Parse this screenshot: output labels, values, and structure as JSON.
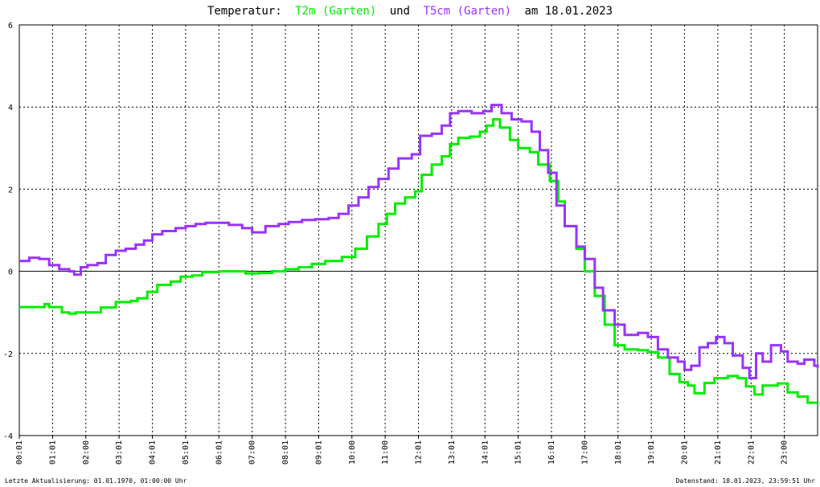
{
  "chart_data": {
    "type": "line",
    "title": {
      "prefix": "Temperatur:",
      "series1_label": "T2m (Garten)",
      "connector": "und",
      "series2_label": "T5cm (Garten)",
      "date_text": "am 18.01.2023"
    },
    "ylim": [
      -4,
      6
    ],
    "y_ticks": [
      -4,
      -2,
      0,
      2,
      4,
      6
    ],
    "x_range_hours": [
      0,
      24
    ],
    "x_tick_labels": [
      "00:01",
      "01:01",
      "02:00",
      "03:01",
      "04:01",
      "05:01",
      "06:01",
      "07:00",
      "08:01",
      "09:01",
      "10:00",
      "11:00",
      "12:01",
      "13:01",
      "14:01",
      "15:01",
      "16:01",
      "17:00",
      "18:01",
      "19:01",
      "20:01",
      "21:01",
      "22:01",
      "23:00"
    ],
    "grid": true,
    "series": [
      {
        "key": "t2m",
        "color": "#00ee00",
        "points": [
          [
            0.0,
            -0.87
          ],
          [
            0.66,
            -0.87
          ],
          [
            0.76,
            -0.8
          ],
          [
            0.9,
            -0.87
          ],
          [
            1.28,
            -1.0
          ],
          [
            1.5,
            -1.03
          ],
          [
            1.7,
            -1.0
          ],
          [
            2.45,
            -0.88
          ],
          [
            2.9,
            -0.75
          ],
          [
            3.35,
            -0.72
          ],
          [
            3.55,
            -0.66
          ],
          [
            3.85,
            -0.5
          ],
          [
            4.15,
            -0.33
          ],
          [
            4.55,
            -0.25
          ],
          [
            4.85,
            -0.13
          ],
          [
            5.2,
            -0.1
          ],
          [
            5.5,
            -0.02
          ],
          [
            6.0,
            0.0
          ],
          [
            6.5,
            0.0
          ],
          [
            6.8,
            -0.05
          ],
          [
            7.2,
            -0.04
          ],
          [
            7.6,
            0.0
          ],
          [
            8.0,
            0.05
          ],
          [
            8.4,
            0.1
          ],
          [
            8.8,
            0.18
          ],
          [
            9.2,
            0.25
          ],
          [
            9.7,
            0.35
          ],
          [
            10.1,
            0.55
          ],
          [
            10.45,
            0.85
          ],
          [
            10.8,
            1.15
          ],
          [
            11.05,
            1.4
          ],
          [
            11.3,
            1.65
          ],
          [
            11.6,
            1.8
          ],
          [
            11.9,
            1.95
          ],
          [
            12.1,
            2.35
          ],
          [
            12.4,
            2.6
          ],
          [
            12.7,
            2.8
          ],
          [
            12.95,
            3.1
          ],
          [
            13.2,
            3.25
          ],
          [
            13.55,
            3.28
          ],
          [
            13.85,
            3.4
          ],
          [
            14.05,
            3.55
          ],
          [
            14.25,
            3.7
          ],
          [
            14.45,
            3.5
          ],
          [
            14.75,
            3.2
          ],
          [
            15.0,
            3.0
          ],
          [
            15.35,
            2.9
          ],
          [
            15.6,
            2.6
          ],
          [
            15.95,
            2.2
          ],
          [
            16.2,
            1.7
          ],
          [
            16.4,
            1.1
          ],
          [
            16.75,
            0.55
          ],
          [
            17.0,
            0.0
          ],
          [
            17.3,
            -0.6
          ],
          [
            17.6,
            -1.3
          ],
          [
            17.9,
            -1.8
          ],
          [
            18.2,
            -1.9
          ],
          [
            18.6,
            -1.92
          ],
          [
            18.9,
            -1.97
          ],
          [
            19.2,
            -2.1
          ],
          [
            19.55,
            -2.5
          ],
          [
            19.85,
            -2.7
          ],
          [
            20.1,
            -2.78
          ],
          [
            20.3,
            -2.97
          ],
          [
            20.6,
            -2.72
          ],
          [
            20.9,
            -2.6
          ],
          [
            21.3,
            -2.55
          ],
          [
            21.6,
            -2.6
          ],
          [
            21.85,
            -2.8
          ],
          [
            22.1,
            -3.0
          ],
          [
            22.35,
            -2.78
          ],
          [
            22.8,
            -2.73
          ],
          [
            23.1,
            -2.95
          ],
          [
            23.4,
            -3.05
          ],
          [
            23.7,
            -3.2
          ],
          [
            24.0,
            -3.22
          ]
        ]
      },
      {
        "key": "t5cm",
        "color": "#9933ff",
        "points": [
          [
            0.0,
            0.25
          ],
          [
            0.3,
            0.33
          ],
          [
            0.6,
            0.3
          ],
          [
            0.9,
            0.15
          ],
          [
            1.2,
            0.05
          ],
          [
            1.5,
            0.0
          ],
          [
            1.65,
            -0.08
          ],
          [
            1.85,
            0.1
          ],
          [
            2.05,
            0.15
          ],
          [
            2.35,
            0.2
          ],
          [
            2.6,
            0.4
          ],
          [
            2.9,
            0.5
          ],
          [
            3.2,
            0.55
          ],
          [
            3.5,
            0.65
          ],
          [
            3.75,
            0.75
          ],
          [
            4.0,
            0.9
          ],
          [
            4.3,
            0.98
          ],
          [
            4.7,
            1.05
          ],
          [
            5.0,
            1.1
          ],
          [
            5.3,
            1.15
          ],
          [
            5.6,
            1.18
          ],
          [
            5.95,
            1.18
          ],
          [
            6.3,
            1.13
          ],
          [
            6.7,
            1.05
          ],
          [
            7.0,
            0.95
          ],
          [
            7.4,
            1.1
          ],
          [
            7.8,
            1.15
          ],
          [
            8.1,
            1.2
          ],
          [
            8.5,
            1.25
          ],
          [
            8.9,
            1.27
          ],
          [
            9.3,
            1.3
          ],
          [
            9.6,
            1.4
          ],
          [
            9.9,
            1.6
          ],
          [
            10.2,
            1.8
          ],
          [
            10.5,
            2.05
          ],
          [
            10.8,
            2.25
          ],
          [
            11.1,
            2.5
          ],
          [
            11.4,
            2.75
          ],
          [
            11.8,
            2.85
          ],
          [
            12.05,
            3.3
          ],
          [
            12.4,
            3.35
          ],
          [
            12.7,
            3.55
          ],
          [
            12.95,
            3.85
          ],
          [
            13.2,
            3.9
          ],
          [
            13.6,
            3.85
          ],
          [
            13.95,
            3.9
          ],
          [
            14.2,
            4.05
          ],
          [
            14.5,
            3.85
          ],
          [
            14.8,
            3.7
          ],
          [
            15.1,
            3.65
          ],
          [
            15.4,
            3.4
          ],
          [
            15.65,
            2.95
          ],
          [
            15.9,
            2.4
          ],
          [
            16.15,
            1.6
          ],
          [
            16.4,
            1.1
          ],
          [
            16.75,
            0.6
          ],
          [
            17.0,
            0.3
          ],
          [
            17.3,
            -0.4
          ],
          [
            17.55,
            -0.95
          ],
          [
            17.9,
            -1.3
          ],
          [
            18.2,
            -1.55
          ],
          [
            18.6,
            -1.5
          ],
          [
            18.9,
            -1.6
          ],
          [
            19.2,
            -1.9
          ],
          [
            19.5,
            -2.1
          ],
          [
            19.8,
            -2.2
          ],
          [
            20.0,
            -2.4
          ],
          [
            20.2,
            -2.3
          ],
          [
            20.45,
            -1.85
          ],
          [
            20.7,
            -1.75
          ],
          [
            20.95,
            -1.6
          ],
          [
            21.2,
            -1.75
          ],
          [
            21.45,
            -2.05
          ],
          [
            21.75,
            -2.35
          ],
          [
            21.95,
            -2.6
          ],
          [
            22.15,
            -2.0
          ],
          [
            22.35,
            -2.2
          ],
          [
            22.6,
            -1.8
          ],
          [
            22.9,
            -1.95
          ],
          [
            23.1,
            -2.2
          ],
          [
            23.4,
            -2.25
          ],
          [
            23.6,
            -2.15
          ],
          [
            23.9,
            -2.3
          ],
          [
            24.0,
            -2.35
          ]
        ]
      }
    ]
  },
  "footer": {
    "left": "Letzte Aktualisierung: 01.01.1970, 01:00:00 Uhr",
    "right": "Datenstand: 18.01.2023, 23:59:51 Uhr"
  },
  "colors": {
    "title": "#000000",
    "series1": "#00ee00",
    "series2": "#9933ff"
  }
}
